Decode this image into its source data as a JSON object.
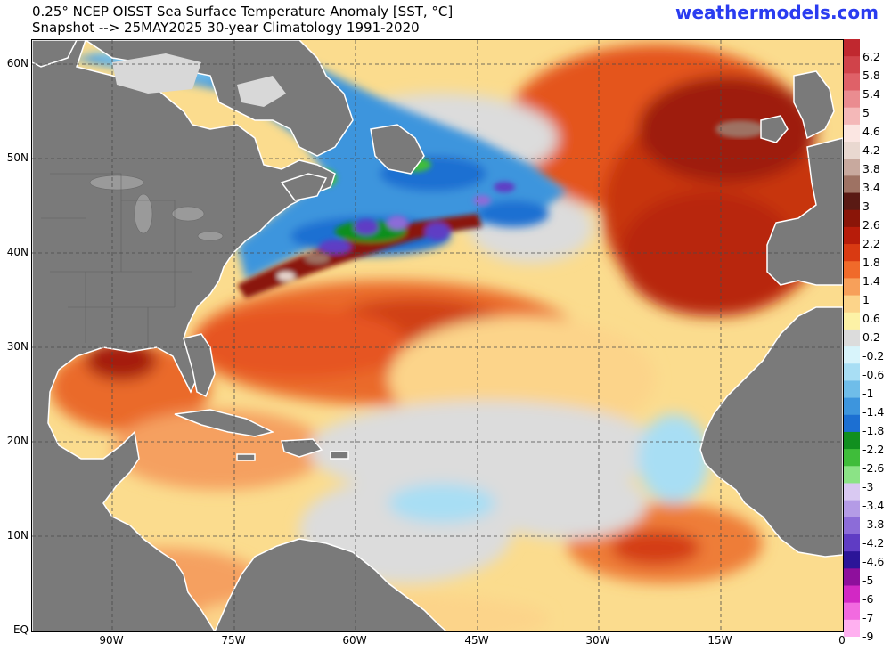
{
  "header": {
    "title_line1": "0.25° NCEP OISST Sea Surface Temperature Anomaly [SST, °C]",
    "title_line2": "Snapshot --> 25MAY2025   30-year Climatology 1991-2020",
    "brand": "weathermodels.com"
  },
  "map": {
    "lat_labels": [
      "60N",
      "50N",
      "40N",
      "30N",
      "20N",
      "10N",
      "EQ"
    ],
    "lon_labels": [
      "90W",
      "75W",
      "60W",
      "45W",
      "30W",
      "15W",
      "0"
    ]
  },
  "legend": {
    "labels": [
      "6.2",
      "5.8",
      "5.4",
      "5",
      "4.6",
      "4.2",
      "3.8",
      "3.4",
      "3",
      "2.6",
      "2.2",
      "1.8",
      "1.4",
      "1",
      "0.6",
      "0.2",
      "-0.2",
      "-0.6",
      "-1",
      "-1.4",
      "-1.8",
      "-2.2",
      "-2.6",
      "-3",
      "-3.4",
      "-3.8",
      "-4.2",
      "-4.6",
      "-5",
      "-6",
      "-7",
      "-9"
    ],
    "colors": [
      "#c0282f",
      "#d0434a",
      "#df6168",
      "#ea8c90",
      "#f4b8b8",
      "#fbe6e2",
      "#e9d8d0",
      "#c8a99e",
      "#9e7263",
      "#5a1a14",
      "#8a1508",
      "#b71c0a",
      "#d93a12",
      "#f06a2a",
      "#f7a05a",
      "#fcd48a",
      "#fdf2a6",
      "#dcdcdc",
      "#d8f4fb",
      "#a8def4",
      "#6fbde9",
      "#3d95dd",
      "#1c6fd2",
      "#118f1f",
      "#3fbd3a",
      "#8be386",
      "#d9c9f2",
      "#b49be6",
      "#8c6cd8",
      "#5f3cc4",
      "#2b1598",
      "#8e0f9c",
      "#d228c4",
      "#f26ae0",
      "#ffb0f0"
    ]
  }
}
